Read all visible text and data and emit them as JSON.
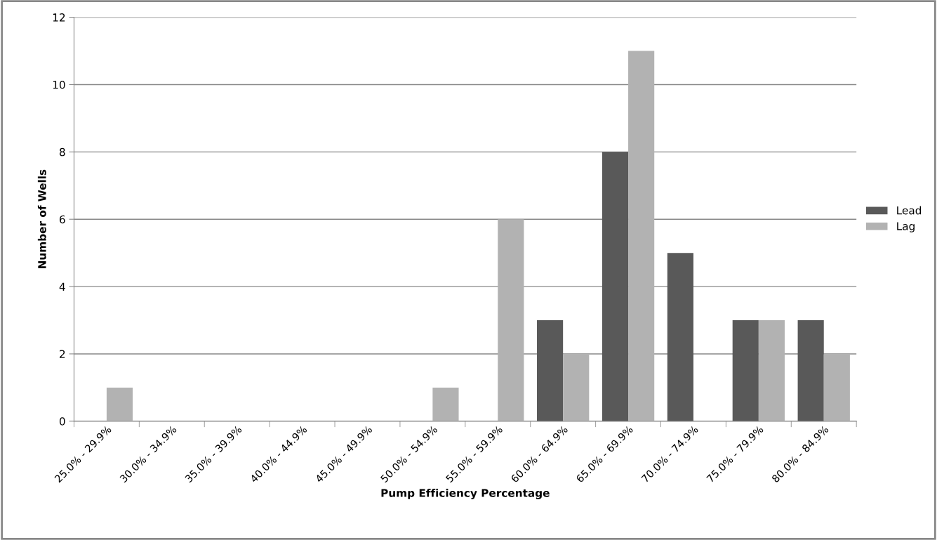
{
  "chart_data": {
    "type": "bar",
    "xlabel": "Pump Efficiency Percentage",
    "ylabel": "Number of Wells",
    "categories": [
      "25.0% - 29.9%",
      "30.0% - 34.9%",
      "35.0% - 39.9%",
      "40.0% - 44.9%",
      "45.0% - 49.9%",
      "50.0% - 54.9%",
      "55.0% - 59.9%",
      "60.0% - 64.9%",
      "65.0% - 69.9%",
      "70.0% - 74.9%",
      "75.0% - 79.9%",
      "80.0% - 84.9%"
    ],
    "series": [
      {
        "name": "Lead",
        "color": "#595959",
        "values": [
          0,
          0,
          0,
          0,
          0,
          0,
          0,
          3,
          8,
          5,
          3,
          3
        ]
      },
      {
        "name": "Lag",
        "color": "#b2b2b2",
        "values": [
          1,
          0,
          0,
          0,
          0,
          1,
          6,
          2,
          11,
          0,
          3,
          2
        ]
      }
    ],
    "ylim": [
      0,
      12
    ],
    "yticks": [
      0,
      2,
      4,
      6,
      8,
      10,
      12
    ],
    "grid": "y",
    "legend": "right"
  }
}
